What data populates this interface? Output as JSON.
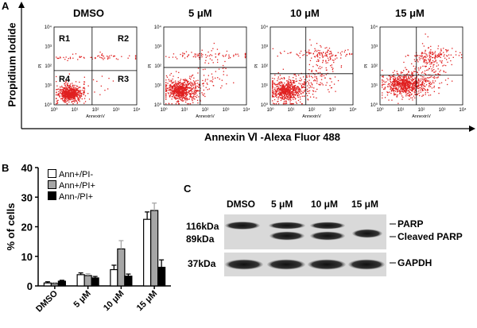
{
  "panels": {
    "a": "A",
    "b": "B",
    "c": "C"
  },
  "flow": {
    "conditions": [
      "DMSO",
      "5 μM",
      "10 μM",
      "15 μM"
    ],
    "y_axis_label": "Propidium Iodide",
    "x_axis_label": "Annexin Ⅵ -Alexa Fluor 488",
    "plot_x_label": "AnnexinV",
    "plot_y_label": "PI",
    "quadrants": [
      "R1",
      "R2",
      "R3",
      "R4"
    ],
    "tick_labels": [
      "10⁰",
      "10¹",
      "10²",
      "10³",
      "10⁴"
    ]
  },
  "chart_data": {
    "type": "bar",
    "title": "",
    "xlabel": "",
    "ylabel": "% of cells",
    "ylim": [
      0,
      40
    ],
    "yticks": [
      0,
      10,
      20,
      30,
      40
    ],
    "categories": [
      "DMSO",
      "5 μM",
      "10 μM",
      "15 μM"
    ],
    "series": [
      {
        "name": "Ann+/PI-",
        "color": "#ffffff",
        "values": [
          1.0,
          3.8,
          5.5,
          22.5
        ],
        "errors": [
          0.4,
          0.6,
          1.5,
          2.5
        ]
      },
      {
        "name": "Ann+/PI+",
        "color": "#a6a6a6",
        "values": [
          0.8,
          3.5,
          12.5,
          25.5
        ],
        "errors": [
          0.3,
          0.6,
          2.8,
          2.5
        ]
      },
      {
        "name": "Ann-/PI+",
        "color": "#000000",
        "values": [
          1.6,
          2.7,
          3.3,
          6.3
        ],
        "errors": [
          0.3,
          0.5,
          0.7,
          2.5
        ]
      }
    ]
  },
  "blot": {
    "lanes": [
      "DMSO",
      "5 μM",
      "10 μM",
      "15 μM"
    ],
    "mw_116": "116kDa",
    "mw_89": "89kDa",
    "mw_37": "37kDa",
    "parp": "PARP",
    "cleaved_parp": "Cleaved PARP",
    "gapdh": "GAPDH"
  }
}
